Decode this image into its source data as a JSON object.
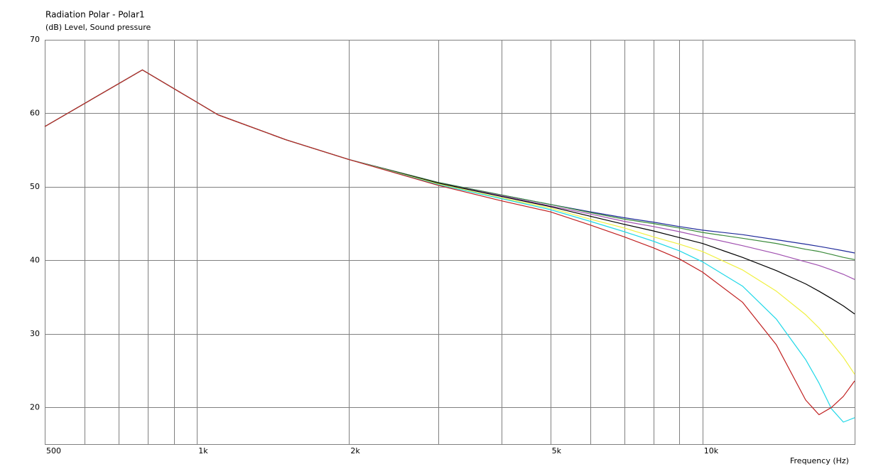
{
  "chart_data": {
    "type": "line",
    "title": "Radiation Polar - Polar1",
    "subtitle": "(dB)  Level, Sound pressure",
    "x_label": "Frequency  (Hz)",
    "log_x": true,
    "grid": true,
    "xlim": [
      500,
      20000
    ],
    "ylim": [
      15,
      70
    ],
    "xticks": [
      {
        "value": 500,
        "label": "500"
      },
      {
        "value": 1000,
        "label": "1k"
      },
      {
        "value": 2000,
        "label": "2k"
      },
      {
        "value": 5000,
        "label": "5k"
      },
      {
        "value": 10000,
        "label": "10k"
      }
    ],
    "xgrid": [
      600,
      700,
      800,
      900,
      3000,
      4000,
      6000,
      7000,
      8000,
      9000
    ],
    "yticks": [
      20,
      30,
      40,
      50,
      60,
      70
    ],
    "x": [
      500,
      780,
      1000,
      1100,
      1500,
      2000,
      3000,
      4000,
      5000,
      6000,
      7000,
      8000,
      9000,
      10000,
      12000,
      14000,
      16000,
      17000,
      18000,
      19000,
      20000
    ],
    "series": [
      {
        "color": "#1f2a9a",
        "values": [
          58.2,
          65.9,
          61.5,
          59.8,
          56.4,
          53.7,
          50.6,
          48.9,
          47.6,
          46.6,
          45.8,
          45.2,
          44.6,
          44.1,
          43.5,
          42.8,
          42.2,
          41.9,
          41.6,
          41.3,
          41.0
        ]
      },
      {
        "color": "#3a8a3a",
        "values": [
          58.2,
          65.9,
          61.5,
          59.8,
          56.4,
          53.7,
          50.6,
          48.9,
          47.6,
          46.5,
          45.6,
          45.0,
          44.4,
          43.8,
          43.0,
          42.3,
          41.5,
          41.2,
          40.8,
          40.4,
          40.1
        ]
      },
      {
        "color": "#a050b0",
        "values": [
          58.2,
          65.9,
          61.5,
          59.8,
          56.4,
          53.7,
          50.5,
          48.8,
          47.4,
          46.3,
          45.3,
          44.6,
          43.9,
          43.2,
          42.0,
          40.9,
          39.8,
          39.3,
          38.7,
          38.1,
          37.4
        ]
      },
      {
        "color": "#000000",
        "values": [
          58.2,
          65.9,
          61.5,
          59.8,
          56.4,
          53.7,
          50.5,
          48.7,
          47.3,
          46.0,
          44.9,
          44.0,
          43.1,
          42.3,
          40.4,
          38.6,
          36.8,
          35.8,
          34.8,
          33.8,
          32.7
        ]
      },
      {
        "color": "#f0f040",
        "values": [
          58.2,
          65.9,
          61.5,
          59.8,
          56.4,
          53.7,
          50.4,
          48.5,
          47.1,
          45.6,
          44.4,
          43.2,
          42.2,
          41.2,
          38.7,
          35.8,
          32.6,
          30.8,
          28.8,
          26.8,
          24.5
        ]
      },
      {
        "color": "#20d8e8",
        "values": [
          58.2,
          65.9,
          61.5,
          59.8,
          56.4,
          53.7,
          50.3,
          48.4,
          46.9,
          45.3,
          43.9,
          42.6,
          41.3,
          39.8,
          36.5,
          32.0,
          26.5,
          23.3,
          19.8,
          18.0,
          18.6
        ]
      },
      {
        "color": "#c02020",
        "values": [
          58.2,
          65.9,
          61.5,
          59.8,
          56.4,
          53.7,
          50.2,
          48.1,
          46.6,
          44.8,
          43.2,
          41.7,
          40.2,
          38.4,
          34.3,
          28.5,
          21.0,
          19.0,
          20.0,
          21.5,
          23.6
        ]
      }
    ]
  }
}
